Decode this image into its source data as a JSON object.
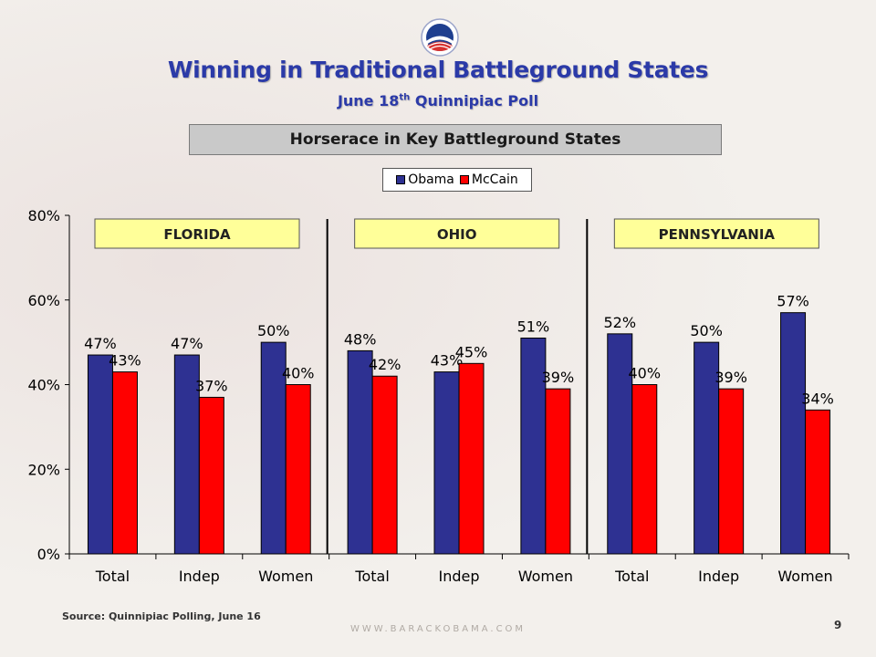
{
  "slide": {
    "title": "Winning in Traditional Battleground States",
    "subtitle_main": "June 18",
    "subtitle_sup": "th",
    "subtitle_rest": " Quinnipiac Poll",
    "source": "Source: Quinnipiac Polling, June 16",
    "url": "WWW.BARACKOBAMA.COM",
    "page_number": "9"
  },
  "colors": {
    "obama": "#2e3192",
    "mccain": "#ff0000",
    "title": "#2b3aa8",
    "state_label_bg": "#ffff99"
  },
  "chart_data": {
    "type": "bar",
    "title": "Horserace in Key Battleground States",
    "groups": [
      {
        "label": "FLORIDA",
        "categories": [
          "Total",
          "Indep",
          "Women"
        ]
      },
      {
        "label": "OHIO",
        "categories": [
          "Total",
          "Indep",
          "Women"
        ]
      },
      {
        "label": "PENNSYLVANIA",
        "categories": [
          "Total",
          "Indep",
          "Women"
        ]
      }
    ],
    "categories": [
      "Total",
      "Indep",
      "Women",
      "Total",
      "Indep",
      "Women",
      "Total",
      "Indep",
      "Women"
    ],
    "series": [
      {
        "name": "Obama",
        "values": [
          47,
          47,
          50,
          48,
          43,
          51,
          52,
          50,
          57
        ],
        "labels": [
          "47%",
          "47%",
          "50%",
          "48%",
          "43%",
          "51%",
          "52%",
          "50%",
          "57%"
        ]
      },
      {
        "name": "McCain",
        "values": [
          43,
          37,
          40,
          42,
          45,
          39,
          40,
          39,
          34
        ],
        "labels": [
          "43%",
          "37%",
          "40%",
          "42%",
          "45%",
          "39%",
          "40%",
          "39%",
          "34%"
        ]
      }
    ],
    "ylim": [
      0,
      80
    ],
    "yticks": [
      0,
      20,
      40,
      60,
      80
    ],
    "ytick_labels": [
      "0%",
      "20%",
      "40%",
      "60%",
      "80%"
    ],
    "legend_position": "top-center",
    "grid": false
  }
}
